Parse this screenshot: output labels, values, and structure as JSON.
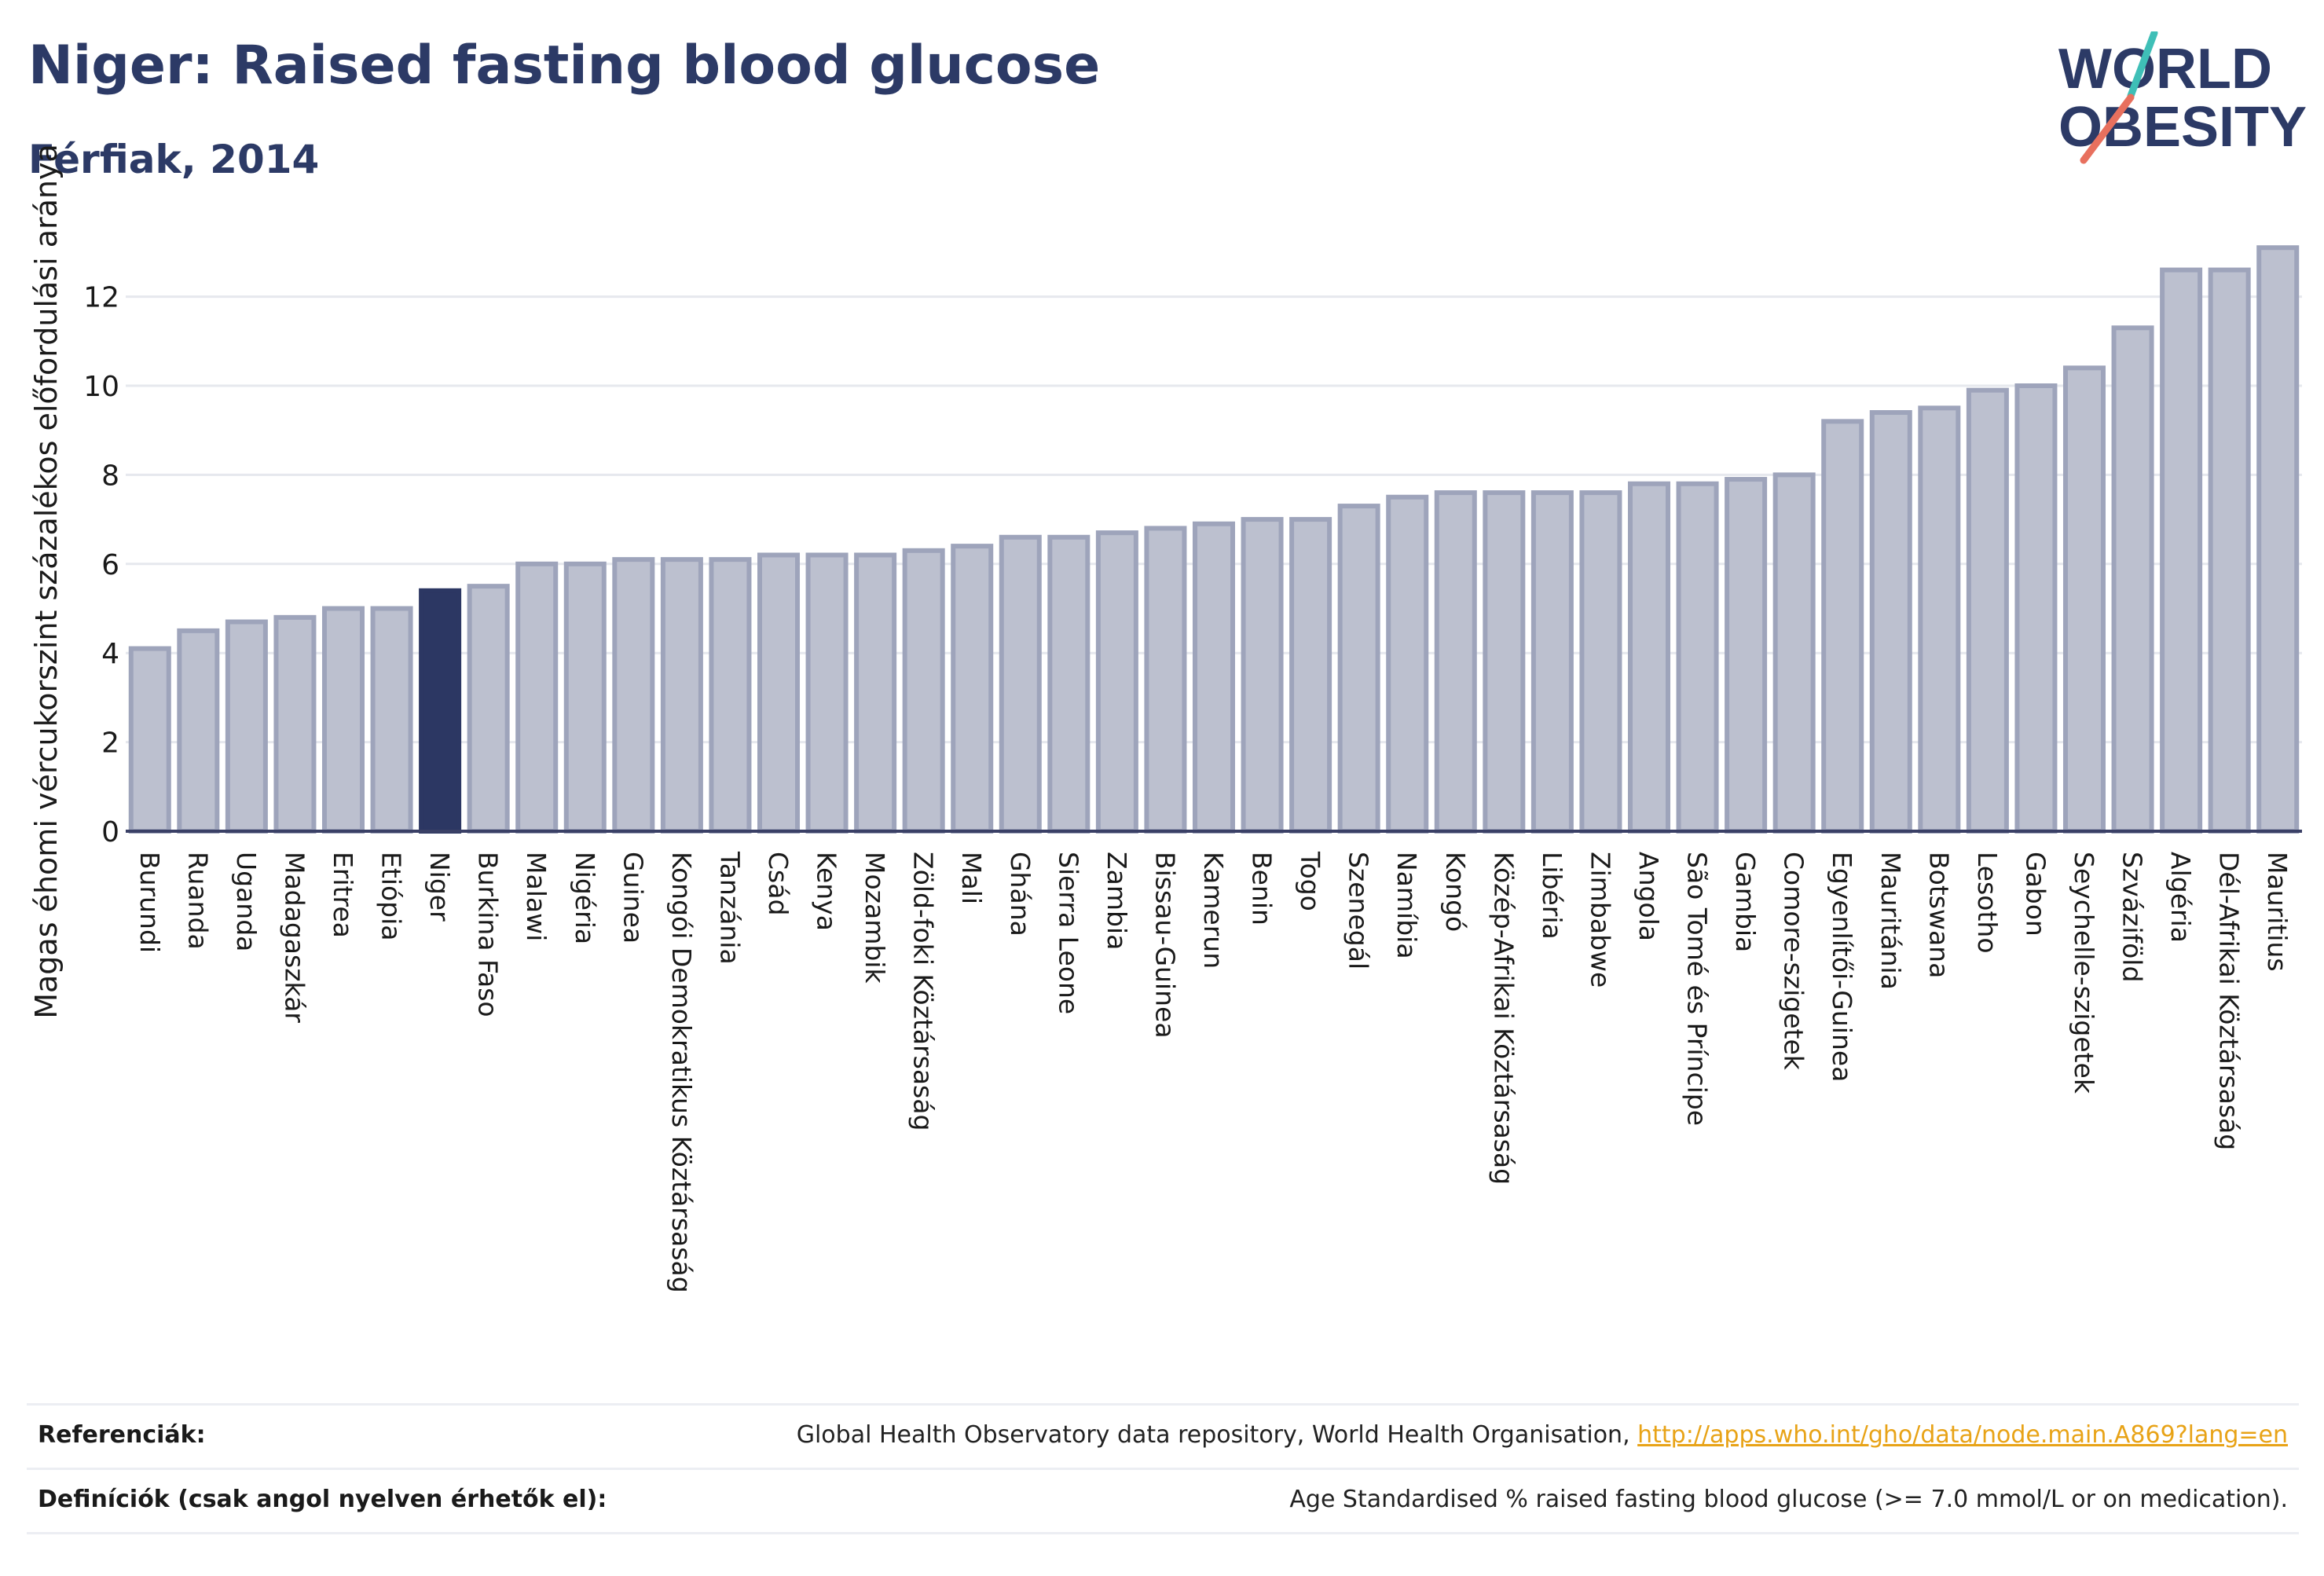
{
  "header": {
    "title": "Niger: Raised fasting blood glucose",
    "subtitle": "Férfiak, 2014"
  },
  "logo": {
    "line1": "WORLD",
    "line2": "OBESITY"
  },
  "chart_data": {
    "type": "bar",
    "ylabel": "Magas éhomi vércukorszint százalékos előfordulási aránya",
    "ylim": [
      0,
      14
    ],
    "yticks": [
      0,
      2,
      4,
      6,
      8,
      10,
      12
    ],
    "grid": true,
    "highlight": "Niger",
    "colors": {
      "bar": "#bcc0cf",
      "bar_border": "#9ea4bb",
      "highlight": "#2c3763",
      "grid": "#e6e8ee"
    },
    "categories": [
      "Burundi",
      "Ruanda",
      "Uganda",
      "Madagaszkár",
      "Eritrea",
      "Etiópia",
      "Niger",
      "Burkina Faso",
      "Malawi",
      "Nigéria",
      "Guinea",
      "Kongói Demokratikus Köztársaság",
      "Tanzánia",
      "Csád",
      "Kenya",
      "Mozambik",
      "Zöld-foki Köztársaság",
      "Mali",
      "Ghána",
      "Sierra Leone",
      "Zambia",
      "Bissau-Guinea",
      "Kamerun",
      "Benin",
      "Togo",
      "Szenegál",
      "Namíbia",
      "Kongó",
      "Közép-Afrikai Köztársaság",
      "Libéria",
      "Zimbabwe",
      "Angola",
      "São Tomé és Príncipe",
      "Gambia",
      "Comore-szigetek",
      "Egyenlítői-Guinea",
      "Mauritánia",
      "Botswana",
      "Lesotho",
      "Gabon",
      "Seychelle-szigetek",
      "Szváziföld",
      "Algéria",
      "Dél-Afrikai Köztársaság",
      "Mauritius"
    ],
    "values": [
      4.1,
      4.5,
      4.7,
      4.8,
      5.0,
      5.0,
      5.4,
      5.5,
      6.0,
      6.0,
      6.1,
      6.1,
      6.1,
      6.2,
      6.2,
      6.2,
      6.3,
      6.4,
      6.6,
      6.6,
      6.7,
      6.8,
      6.9,
      7.0,
      7.0,
      7.3,
      7.5,
      7.6,
      7.6,
      7.6,
      7.6,
      7.8,
      7.8,
      7.9,
      8.0,
      9.2,
      9.4,
      9.5,
      9.9,
      10.0,
      10.4,
      11.3,
      12.6,
      12.6,
      13.1
    ]
  },
  "footer": {
    "references_label": "Referenciák:",
    "references_text": "Global Health Observatory data repository, World Health Organisation, ",
    "references_link": "http://apps.who.int/gho/data/node.main.A869?lang=en",
    "definitions_label": "Definíciók (csak angol nyelven érhetők el):",
    "definitions_text": "Age Standardised % raised fasting blood glucose (>= 7.0 mmol/L or on medication)."
  }
}
